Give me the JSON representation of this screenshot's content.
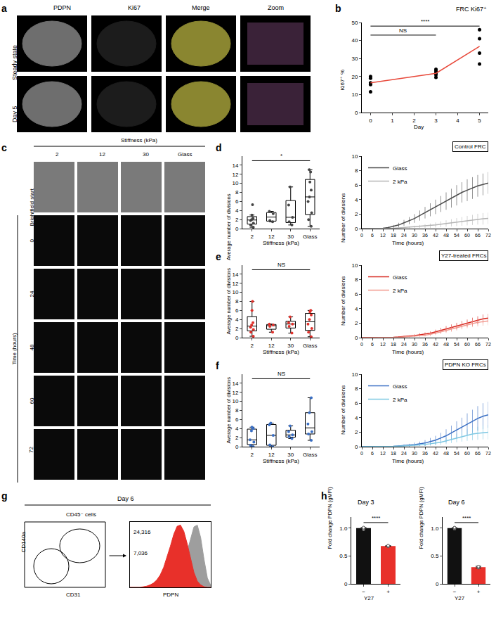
{
  "chart_data": [
    {
      "panel": "b",
      "type": "scatter",
      "title": "FRC Ki67⁺",
      "x_label": "Day",
      "y_label": "Ki67⁺ %",
      "x": [
        0,
        3,
        5
      ],
      "points": [
        [
          11.5,
          15.5,
          16.5,
          19,
          20
        ],
        [
          19.5,
          21,
          22,
          23,
          24
        ],
        [
          27,
          33,
          41,
          46
        ]
      ],
      "line_values": [
        16.5,
        21.8,
        36.8
      ],
      "color": "#e8493b",
      "xlim": [
        -0.4,
        5.4
      ],
      "xticks": [
        0,
        1,
        2,
        3,
        4,
        5
      ],
      "ylim": [
        0,
        50
      ],
      "yticks": [
        0,
        10,
        20,
        30,
        40,
        50
      ],
      "brackets": [
        {
          "from": 0,
          "to": 3,
          "y": 43,
          "text": "NS"
        },
        {
          "from": 0,
          "to": 5,
          "y": 48,
          "text": "****"
        }
      ]
    },
    {
      "panel": "d",
      "type": "box",
      "x_label": "Stiffness (kPa)",
      "y_label": "Average number of divisions",
      "categories": [
        "2",
        "12",
        "30",
        "Glass"
      ],
      "values": [
        [
          0.3,
          0.8,
          1.2,
          1.8,
          2,
          2.3,
          3,
          5.3
        ],
        [
          1.5,
          1.8,
          3.3,
          3.8
        ],
        [
          0.8,
          1.5,
          2.5,
          5.2,
          9.2
        ],
        [
          0.5,
          2,
          3.5,
          6,
          7,
          8.5,
          10.3,
          12.5,
          13
        ]
      ],
      "color": "#444444",
      "ylim": [
        0,
        16
      ],
      "yticks": [
        0,
        2,
        4,
        6,
        8,
        10,
        12,
        14
      ],
      "brackets": [
        {
          "from": "2",
          "to": "Glass",
          "y": 15,
          "text": "*"
        }
      ]
    },
    {
      "type": "line",
      "title": "Control FRC",
      "x_label": "Time (hours)",
      "y_label": "Number of divisions",
      "x": [
        0,
        3,
        6,
        9,
        12,
        15,
        18,
        21,
        24,
        27,
        30,
        33,
        36,
        39,
        42,
        45,
        48,
        51,
        54,
        57,
        60,
        63,
        66,
        69,
        72
      ],
      "xlim": [
        0,
        72
      ],
      "xticks": [
        0,
        6,
        12,
        18,
        24,
        30,
        36,
        42,
        48,
        54,
        60,
        66,
        72
      ],
      "ylim": [
        0,
        10
      ],
      "yticks": [
        0,
        2,
        4,
        6,
        8,
        10
      ],
      "legend": "top left",
      "series": [
        {
          "name": "Glass",
          "color": "#4d4d4d",
          "values": [
            0,
            0,
            0,
            0,
            0.05,
            0.15,
            0.3,
            0.5,
            0.8,
            1.1,
            1.4,
            1.8,
            2.2,
            2.6,
            3.0,
            3.4,
            3.8,
            4.2,
            4.6,
            5.0,
            5.3,
            5.6,
            5.9,
            6.1,
            6.3
          ],
          "errors": [
            0,
            0,
            0,
            0,
            0.05,
            0.1,
            0.2,
            0.3,
            0.4,
            0.5,
            0.6,
            0.7,
            0.8,
            0.9,
            1.0,
            1.1,
            1.2,
            1.3,
            1.4,
            1.4,
            1.5,
            1.5,
            1.5,
            1.5,
            1.5
          ]
        },
        {
          "name": "2 kPa",
          "color": "#b5b5b5",
          "values": [
            0,
            0,
            0,
            0,
            0,
            0.02,
            0.05,
            0.1,
            0.15,
            0.2,
            0.25,
            0.3,
            0.35,
            0.4,
            0.5,
            0.6,
            0.7,
            0.8,
            0.9,
            1.0,
            1.1,
            1.2,
            1.3,
            1.35,
            1.4
          ],
          "errors": [
            0,
            0,
            0,
            0,
            0,
            0.02,
            0.05,
            0.08,
            0.1,
            0.12,
            0.15,
            0.2,
            0.25,
            0.3,
            0.35,
            0.4,
            0.45,
            0.5,
            0.55,
            0.6,
            0.65,
            0.7,
            0.75,
            0.8,
            0.8
          ]
        }
      ]
    },
    {
      "panel": "e",
      "type": "box",
      "x_label": "Stiffness (kPa)",
      "y_label": "Average number of divisions",
      "categories": [
        "2",
        "12",
        "30",
        "Glass"
      ],
      "values": [
        [
          0.3,
          1.2,
          1.8,
          2.3,
          2.8,
          3.3,
          6,
          8
        ],
        [
          1.2,
          2.5,
          2.8,
          3
        ],
        [
          1,
          2.5,
          3,
          3.3,
          4.6
        ],
        [
          0.2,
          1.2,
          2,
          3,
          4,
          5,
          5.7,
          6
        ]
      ],
      "color": "#e0322c",
      "ylim": [
        0,
        16
      ],
      "yticks": [
        0,
        2,
        4,
        6,
        8,
        10,
        12,
        14
      ],
      "brackets": [
        {
          "from": "2",
          "to": "Glass",
          "y": 15,
          "text": "NS"
        }
      ]
    },
    {
      "type": "line",
      "title": "Y27-treated FRCs",
      "x_label": "Time (hours)",
      "y_label": "Number of divisions",
      "x": [
        0,
        3,
        6,
        9,
        12,
        15,
        18,
        21,
        24,
        27,
        30,
        33,
        36,
        39,
        42,
        45,
        48,
        51,
        54,
        57,
        60,
        63,
        66,
        69,
        72
      ],
      "xlim": [
        0,
        72
      ],
      "xticks": [
        0,
        6,
        12,
        18,
        24,
        30,
        36,
        42,
        48,
        54,
        60,
        66,
        72
      ],
      "ylim": [
        0,
        10
      ],
      "yticks": [
        0,
        2,
        4,
        6,
        8,
        10
      ],
      "legend": "top left",
      "series": [
        {
          "name": "Glass",
          "color": "#d7261e",
          "values": [
            0,
            0,
            0,
            0,
            0,
            0.02,
            0.05,
            0.1,
            0.15,
            0.2,
            0.3,
            0.4,
            0.5,
            0.6,
            0.8,
            1.0,
            1.2,
            1.4,
            1.6,
            1.8,
            2.0,
            2.2,
            2.4,
            2.6,
            2.7
          ],
          "errors": [
            0,
            0,
            0,
            0,
            0,
            0.02,
            0.05,
            0.08,
            0.1,
            0.12,
            0.15,
            0.2,
            0.22,
            0.25,
            0.3,
            0.35,
            0.4,
            0.42,
            0.45,
            0.5,
            0.5,
            0.55,
            0.55,
            0.6,
            0.6
          ]
        },
        {
          "name": "2 kPa",
          "color": "#f2998f",
          "values": [
            0,
            0,
            0,
            0,
            0,
            0,
            0.02,
            0.05,
            0.1,
            0.15,
            0.2,
            0.25,
            0.35,
            0.45,
            0.6,
            0.8,
            1.0,
            1.2,
            1.4,
            1.6,
            1.8,
            1.95,
            2.1,
            2.2,
            2.3
          ],
          "errors": [
            0,
            0,
            0,
            0,
            0,
            0,
            0.02,
            0.05,
            0.08,
            0.1,
            0.12,
            0.15,
            0.2,
            0.22,
            0.25,
            0.3,
            0.35,
            0.4,
            0.42,
            0.45,
            0.5,
            0.5,
            0.55,
            0.55,
            0.6
          ]
        }
      ]
    },
    {
      "panel": "f",
      "type": "box",
      "x_label": "Stiffness (kPa)",
      "y_label": "Average number of divisions",
      "categories": [
        "2",
        "12",
        "30",
        "Glass"
      ],
      "values": [
        [
          0,
          0.3,
          1,
          1.5,
          3.5,
          4,
          4.3
        ],
        [
          0,
          0.4,
          2.5,
          4.8,
          5.2
        ],
        [
          1.8,
          2.2,
          2.6,
          3.3,
          4.6
        ],
        [
          1.4,
          2.8,
          3.3,
          5,
          7.5,
          10.8
        ]
      ],
      "color": "#3a6fc4",
      "ylim": [
        0,
        16
      ],
      "yticks": [
        0,
        2,
        4,
        6,
        8,
        10,
        12,
        14
      ],
      "brackets": [
        {
          "from": "2",
          "to": "Glass",
          "y": 15,
          "text": "NS"
        }
      ]
    },
    {
      "type": "line",
      "title": "PDPN KO FRCs",
      "x_label": "Time (hours)",
      "y_label": "Number of divisions",
      "x": [
        0,
        3,
        6,
        9,
        12,
        15,
        18,
        21,
        24,
        27,
        30,
        33,
        36,
        39,
        42,
        45,
        48,
        51,
        54,
        57,
        60,
        63,
        66,
        69,
        72
      ],
      "xlim": [
        0,
        72
      ],
      "xticks": [
        0,
        6,
        12,
        18,
        24,
        30,
        36,
        42,
        48,
        54,
        60,
        66,
        72
      ],
      "ylim": [
        0,
        10
      ],
      "yticks": [
        0,
        2,
        4,
        6,
        8,
        10
      ],
      "legend": "top left",
      "series": [
        {
          "name": "Glass",
          "color": "#3a6fc4",
          "values": [
            0,
            0,
            0,
            0,
            0,
            0.02,
            0.05,
            0.1,
            0.15,
            0.2,
            0.3,
            0.4,
            0.5,
            0.7,
            0.9,
            1.2,
            1.5,
            1.9,
            2.3,
            2.7,
            3.1,
            3.5,
            3.9,
            4.2,
            4.4
          ],
          "errors": [
            0,
            0,
            0,
            0,
            0,
            0.02,
            0.05,
            0.1,
            0.15,
            0.2,
            0.25,
            0.3,
            0.4,
            0.5,
            0.6,
            0.7,
            0.9,
            1.0,
            1.2,
            1.3,
            1.5,
            1.6,
            1.7,
            1.8,
            1.8
          ]
        },
        {
          "name": "2 kPa",
          "color": "#7ec8e3",
          "values": [
            0,
            0,
            0,
            0,
            0,
            0.02,
            0.05,
            0.08,
            0.1,
            0.15,
            0.2,
            0.25,
            0.3,
            0.4,
            0.5,
            0.6,
            0.8,
            1.0,
            1.2,
            1.4,
            1.6,
            1.75,
            1.85,
            1.95,
            2.0
          ],
          "errors": [
            0,
            0,
            0,
            0,
            0,
            0.02,
            0.04,
            0.06,
            0.08,
            0.1,
            0.12,
            0.15,
            0.2,
            0.25,
            0.3,
            0.35,
            0.45,
            0.5,
            0.6,
            0.7,
            0.8,
            0.85,
            0.9,
            0.95,
            1.0
          ]
        }
      ]
    },
    {
      "type": "area",
      "title": "Day 6",
      "x_label": "PDPN",
      "tick_labels": false,
      "x": [
        0,
        1,
        2,
        3,
        4,
        5,
        6,
        7,
        8,
        9,
        10,
        11,
        12,
        13,
        14,
        15,
        16,
        17,
        18,
        19,
        20,
        21,
        22,
        23,
        24
      ],
      "xlim": [
        0,
        24
      ],
      "ylim": [
        0,
        105
      ],
      "series": [
        {
          "color": "#9e9e9e",
          "gmfi": "24,316",
          "values": [
            0,
            0,
            0,
            0,
            0,
            0,
            0,
            0,
            0,
            1,
            2,
            3,
            5,
            8,
            14,
            24,
            38,
            58,
            80,
            97,
            100,
            80,
            45,
            15,
            3
          ]
        },
        {
          "color": "#e8302a",
          "gmfi": "7,036",
          "values": [
            0,
            0,
            0,
            0,
            1,
            2,
            4,
            7,
            12,
            20,
            32,
            48,
            66,
            85,
            98,
            100,
            90,
            70,
            45,
            24,
            10,
            4,
            1,
            0,
            0
          ]
        }
      ]
    },
    {
      "panel": "h",
      "type": "bar",
      "title": "Day 3",
      "x_label": "Y27",
      "y_label": "Fold change PDPN (gMFI)",
      "categories": [
        "−",
        "+"
      ],
      "values": [
        1.0,
        0.68
      ],
      "errors": [
        0.015,
        0.005
      ],
      "points": [
        [
          0.98,
          1.0,
          1.01
        ],
        [
          0.675,
          0.68,
          0.685
        ]
      ],
      "colors": [
        "#111111",
        "#e8302a"
      ],
      "ylim": [
        0,
        1.2
      ],
      "yticks": [
        0,
        0.5,
        {
          "value": 1,
          "label": "1.0"
        }
      ],
      "brackets": [
        {
          "from": "−",
          "to": "+",
          "y": 1.1,
          "text": "****"
        }
      ]
    },
    {
      "type": "bar",
      "title": "Day 6",
      "x_label": "Y27",
      "y_label": "Fold change PDPN (gMFI)",
      "categories": [
        "−",
        "+"
      ],
      "values": [
        1.0,
        0.3
      ],
      "errors": [
        0.01,
        0.015
      ],
      "points": [
        [
          0.99,
          1.0,
          1.01
        ],
        [
          0.29,
          0.3,
          0.31
        ]
      ],
      "colors": [
        "#111111",
        "#e8302a"
      ],
      "ylim": [
        0,
        1.2
      ],
      "yticks": [
        0,
        0.5,
        {
          "value": 1,
          "label": "1.0"
        }
      ],
      "brackets": [
        {
          "from": "−",
          "to": "+",
          "y": 1.1,
          "text": "****"
        }
      ]
    }
  ],
  "image_panels": {
    "a": {
      "panel": "a",
      "columns": [
        "PDPN",
        "Ki67",
        "Merge",
        "Zoom"
      ],
      "rows": [
        "Steady state",
        "Day 5"
      ]
    },
    "c": {
      "panel": "c",
      "column_title": "Stiffness (kPa)",
      "columns": [
        "2",
        "12",
        "30",
        "Glass"
      ],
      "rows": [
        "Brightfield start",
        "0",
        "24",
        "48",
        "60",
        "72"
      ],
      "row_title": "Time (hours)"
    },
    "g": {
      "panel": "g",
      "title": "CD45⁻ cells",
      "x_label": "CD31",
      "y_label": "CD140a"
    }
  }
}
